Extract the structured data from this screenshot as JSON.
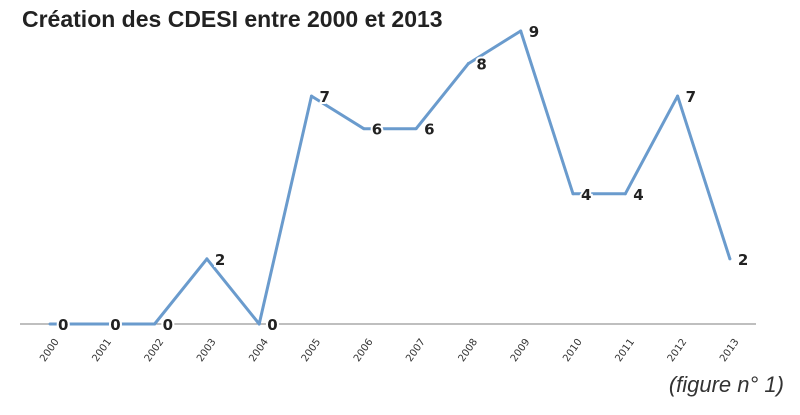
{
  "colors": {
    "line": "#6a9bcd",
    "axis": "#7f7f7f",
    "text": "#222222"
  },
  "caption": "(figure n° 1)",
  "chart_data": {
    "type": "line",
    "title": "Création des CDESI entre 2000 et 2013",
    "xlabel": "",
    "ylabel": "",
    "categories": [
      "2000",
      "2001",
      "2002",
      "2003",
      "2004",
      "2005",
      "2006",
      "2007",
      "2008",
      "2009",
      "2010",
      "2011",
      "2012",
      "2013"
    ],
    "values": [
      0,
      0,
      0,
      2,
      0,
      7,
      6,
      6,
      8,
      9,
      4,
      4,
      7,
      2
    ],
    "ylim": [
      0,
      9
    ],
    "grid": false,
    "legend": "none",
    "data_labels": true
  }
}
